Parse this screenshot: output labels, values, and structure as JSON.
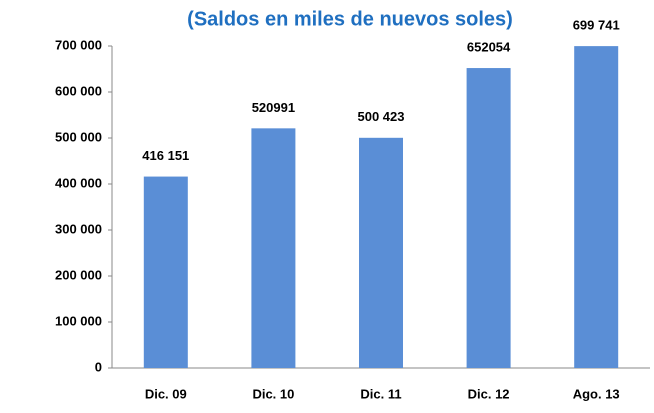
{
  "chart_data": {
    "type": "bar",
    "title": "(Saldos en miles de nuevos soles)",
    "categories": [
      "Dic. 09",
      "Dic. 10",
      "Dic. 11",
      "Dic. 12",
      "Ago. 13"
    ],
    "values": [
      416151,
      520991,
      500423,
      652054,
      699741
    ],
    "value_labels": [
      "416 151",
      "520991",
      "500 423",
      "652054",
      "699 741"
    ],
    "color": "#5a8ed6",
    "ylim": [
      0,
      700000
    ],
    "yticks": [
      {
        "value": 0,
        "label": "0"
      },
      {
        "value": 100000,
        "label": "100 000"
      },
      {
        "value": 200000,
        "label": "200 000"
      },
      {
        "value": 300000,
        "label": "300 000"
      },
      {
        "value": 400000,
        "label": "400 000"
      },
      {
        "value": 500000,
        "label": "500 000"
      },
      {
        "value": 600000,
        "label": "600 000"
      },
      {
        "value": 700000,
        "label": "700 000"
      }
    ],
    "grid": false
  }
}
